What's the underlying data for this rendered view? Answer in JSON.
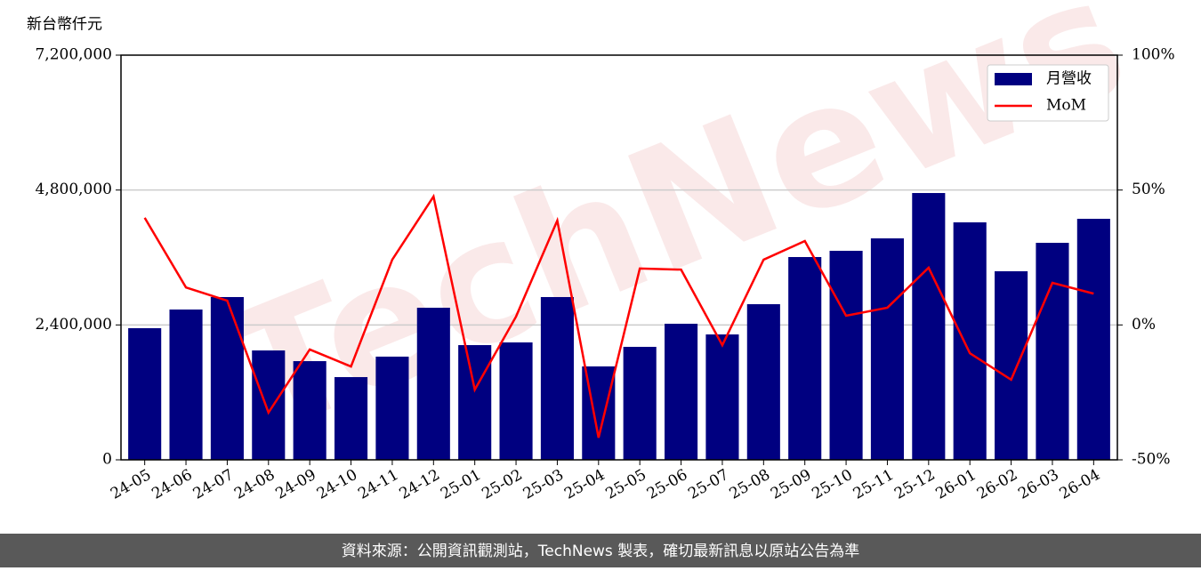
{
  "chart_data": {
    "type": "bar-line",
    "y_label": "新台幣仟元",
    "watermark": "TechNews",
    "footer": "資料來源：公開資訊觀測站，TechNews 製表，確切最新訊息以原站公告為準",
    "categories": [
      "24-05",
      "24-06",
      "24-07",
      "24-08",
      "24-09",
      "24-10",
      "24-11",
      "24-12",
      "25-01",
      "25-02",
      "25-03",
      "25-04",
      "25-05",
      "25-06",
      "25-07",
      "25-08",
      "25-09",
      "25-10",
      "25-11",
      "25-12",
      "26-01",
      "26-02",
      "26-03",
      "26-04"
    ],
    "series": [
      {
        "name": "月營收",
        "color": "#000080",
        "type": "bar",
        "values": [
          2342000,
          2674000,
          2896000,
          1946000,
          1756000,
          1472000,
          1836000,
          2706000,
          2041000,
          2089000,
          2896000,
          1662000,
          2010000,
          2421000,
          2231000,
          2769000,
          3608000,
          3719000,
          3940000,
          4747000,
          4225000,
          3355000,
          3861000,
          4288000
        ]
      },
      {
        "name": "MoM",
        "color": "#ff0000",
        "type": "line",
        "axis": "y2",
        "values": [
          39.7,
          13.9,
          9.0,
          -32.5,
          -9.1,
          -15.4,
          24.2,
          47.6,
          -24.0,
          3.1,
          38.7,
          -41.8,
          20.9,
          20.5,
          -7.5,
          24.2,
          31.1,
          3.4,
          6.4,
          21.2,
          -10.5,
          -20.3,
          15.6,
          11.6
        ]
      }
    ],
    "ylim": [
      0,
      7200000
    ],
    "yticks": [
      0,
      {
        "value": 2400000,
        "label": "2,400,000"
      },
      {
        "value": 4800000,
        "label": "4,800,000"
      },
      {
        "value": 7200000,
        "label": "7,200,000"
      }
    ],
    "y2lim": [
      -50,
      100
    ],
    "y2ticks": [
      {
        "value": -50,
        "label": "-50%"
      },
      {
        "value": 0,
        "label": "0%"
      },
      {
        "value": 50,
        "label": "50%"
      },
      {
        "value": 100,
        "label": "100%"
      }
    ],
    "grid": true,
    "legend": "upper right"
  }
}
